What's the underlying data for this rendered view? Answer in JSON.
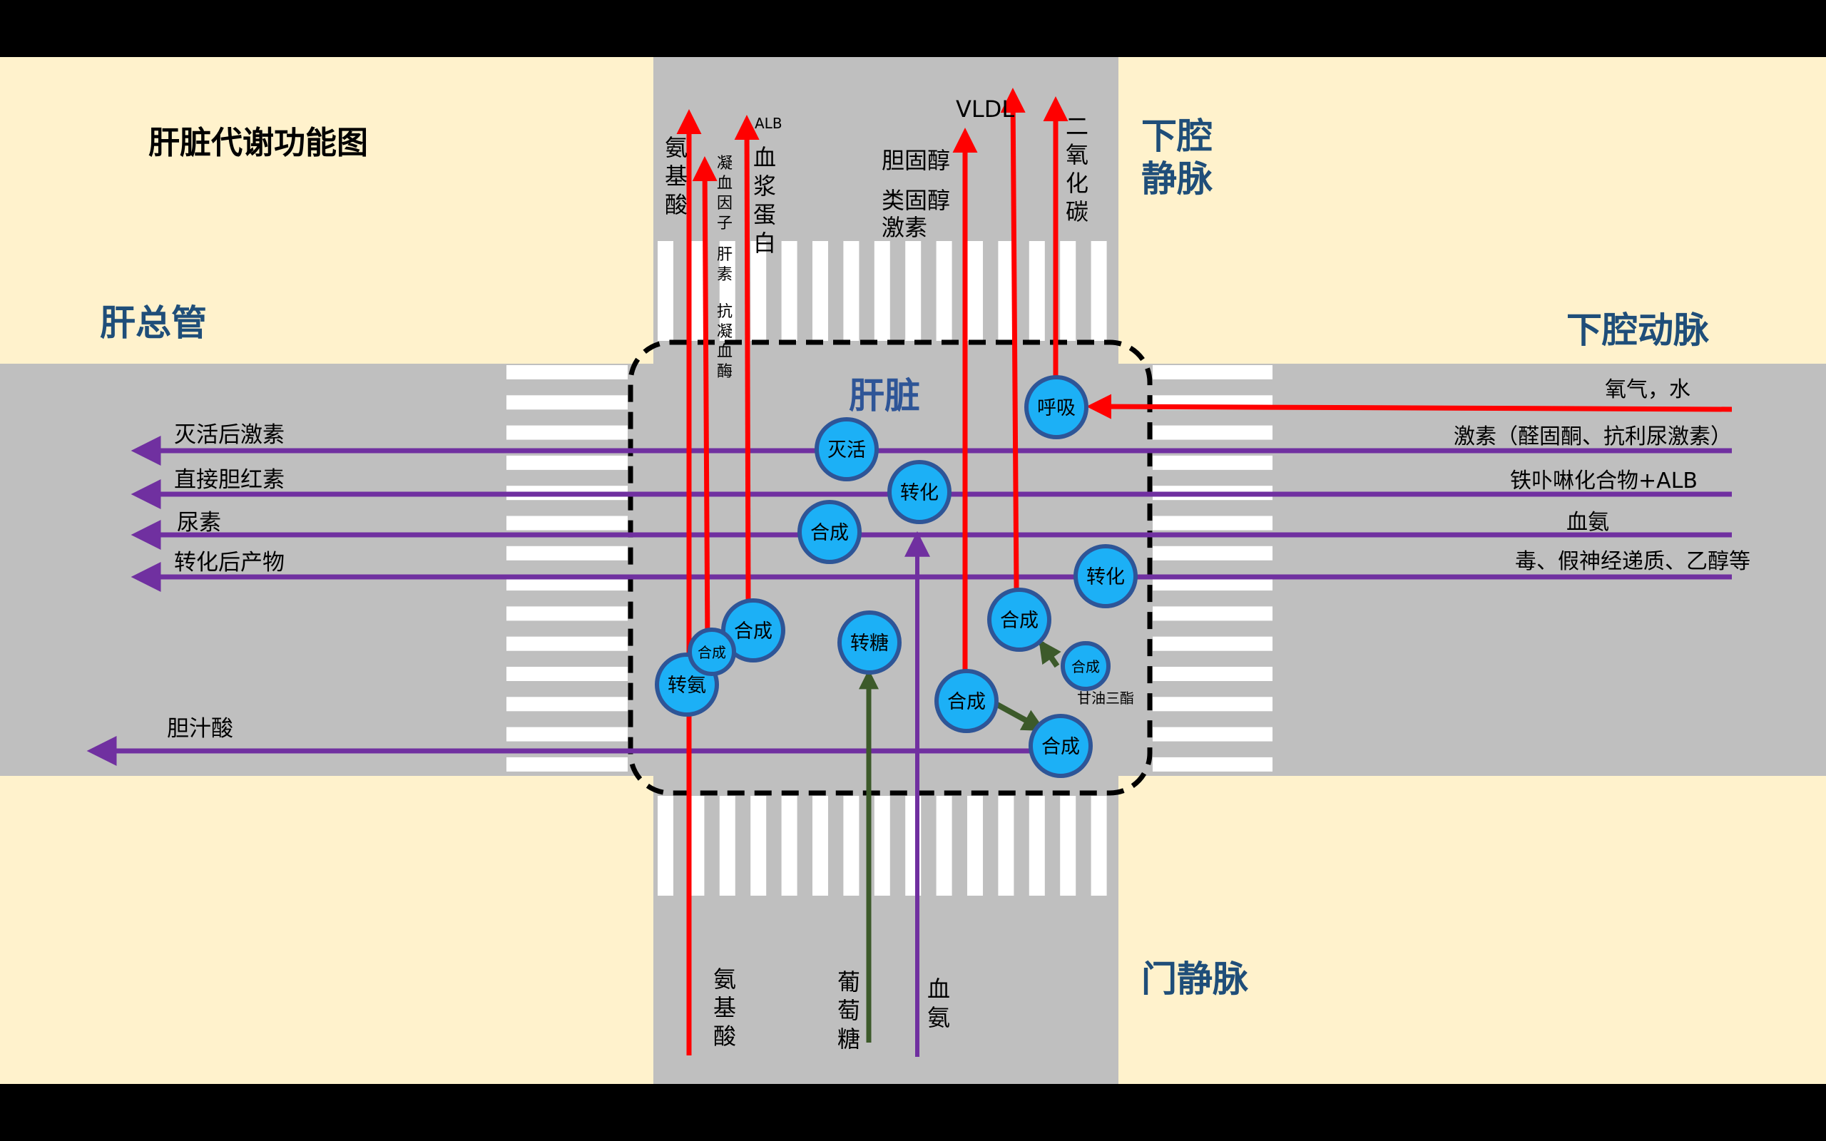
{
  "title": "肝脏代谢功能图",
  "liver_label": "肝脏",
  "roads": {
    "hepatic_duct": "肝总管",
    "ivc": "下腔\n静脉",
    "aorta": "下腔动脉",
    "portal_vein": "门静脉"
  },
  "top_labels": {
    "amino_acid": "氨\n基\n酸",
    "coag_factor": "凝\n血\n因\n子",
    "heparin": "肝\n素",
    "antithrombin": "抗\n凝\n血\n酶",
    "alb": "ALB",
    "plasma_protein": "血\n浆\n蛋\n白",
    "cholesterol": "胆固醇",
    "steroid": "类固醇\n激素",
    "vldl": "VLDL",
    "co2": "二\n氧\n化\n碳"
  },
  "right_labels": {
    "oxygen_water": "氧气，水",
    "hormones_in": "激素（醛固酮、抗利尿激素）",
    "heme_alb": "铁卟啉化合物+ALB",
    "blood_ammonia": "血氨",
    "toxins": "毒、假神经递质、乙醇等"
  },
  "left_labels": {
    "inactivated_hormones": "灭活后激素",
    "direct_bilirubin": "直接胆红素",
    "urea": "尿素",
    "converted_products": "转化后产物",
    "bile_acid": "胆汁酸"
  },
  "bottom_labels": {
    "amino_acid": "氨\n基\n酸",
    "glucose": "葡\n萄\n糖",
    "blood_ammonia": "血\n氨"
  },
  "process_nodes": {
    "respiration": "呼吸",
    "inactivation": "灭活",
    "conversion_1": "转化",
    "synthesis_urea": "合成",
    "conversion_2": "转化",
    "synthesis_protein": "合成",
    "synthesis_coag": "合成",
    "transamination": "转氨",
    "gluconeogenesis": "转糖",
    "synthesis_vldl": "合成",
    "synthesis_tg": "合成",
    "synthesis_chol": "合成",
    "synthesis_bile": "合成"
  },
  "triglyceride_label": "甘油三酯",
  "colors": {
    "background": "#fff2cc",
    "road": "#bfbfbf",
    "stripe": "#ffffff",
    "red_flow": "#ff0000",
    "purple_flow": "#7030a0",
    "green_flow": "#3c5a2a",
    "node_fill": "#1cb0f6",
    "node_stroke": "#2e5597",
    "heading": "#1f4e79"
  }
}
